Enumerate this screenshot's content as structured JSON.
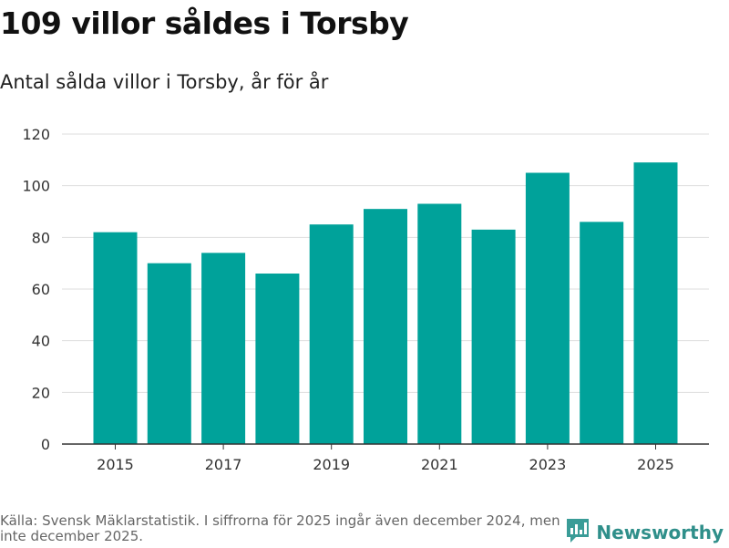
{
  "title": "109 villor såldes i Torsby",
  "subtitle": "Antal sålda villor i Torsby, år för år",
  "source": "Källa: Svensk Mäklarstatistik. I siffrorna för 2025 ingår även december 2024, men inte december 2025.",
  "brand": {
    "name": "Newsworthy",
    "icon": "newsworthy-logo-icon"
  },
  "colors": {
    "bar": "#00a29a",
    "grid": "#dddddd",
    "axis": "#333333"
  },
  "chart_data": {
    "type": "bar",
    "title": "109 villor såldes i Torsby",
    "xlabel": "",
    "ylabel": "",
    "ylim": [
      0,
      120
    ],
    "yticks": [
      0,
      20,
      40,
      60,
      80,
      100,
      120
    ],
    "categories": [
      "2015",
      "2016",
      "2017",
      "2018",
      "2019",
      "2020",
      "2021",
      "2022",
      "2023",
      "2024",
      "2025"
    ],
    "xtick_labels": [
      "2015",
      "2017",
      "2019",
      "2021",
      "2023",
      "2025"
    ],
    "values": [
      82,
      70,
      74,
      66,
      85,
      91,
      93,
      83,
      105,
      86,
      109
    ],
    "grid": true
  }
}
